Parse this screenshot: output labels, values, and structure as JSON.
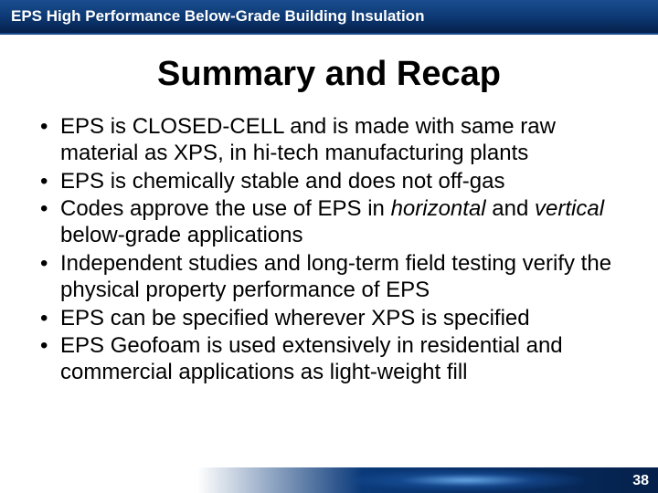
{
  "header": {
    "title": "EPS High Performance Below-Grade Building Insulation"
  },
  "title": "Summary and Recap",
  "bullets": [
    {
      "pre": "EPS is CLOSED-CELL and is made with same raw material as XPS, in hi-tech manufacturing  plants"
    },
    {
      "pre": "EPS is chemically stable and does not off-gas"
    },
    {
      "pre": "Codes approve the use of EPS in ",
      "em1": "horizontal",
      "mid": " and ",
      "em2": "vertical",
      "post": " below-grade applications"
    },
    {
      "pre": "Independent studies and long-term field testing verify the physical property performance of EPS"
    },
    {
      "pre": "EPS can be specified wherever XPS is specified"
    },
    {
      "pre": "EPS Geofoam is used extensively in residential and commercial applications as light-weight fill"
    }
  ],
  "pageNumber": "38",
  "colors": {
    "headerGradientTop": "#1a4d8f",
    "headerGradientBottom": "#05204a",
    "text": "#000000",
    "white": "#ffffff"
  }
}
